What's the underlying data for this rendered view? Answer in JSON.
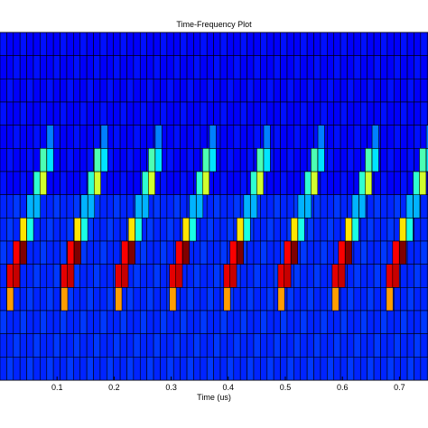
{
  "chart_data": {
    "type": "heatmap",
    "title": "Time-Frequency Plot",
    "xlabel": "Time (us)",
    "ylabel": "",
    "x_ticks": [
      "0.1",
      "0.2",
      "0.3",
      "0.4",
      "0.5",
      "0.6",
      "0.7"
    ],
    "x_tick_values": [
      0.1,
      0.2,
      0.3,
      0.4,
      0.5,
      0.6,
      0.7
    ],
    "xlim": [
      0.0,
      0.75
    ],
    "colormap": "jet",
    "value_range": [
      0,
      1
    ],
    "grid": false,
    "time_bin_width_us": 0.0117,
    "frequency_bins": 15,
    "bin_row_from_top_note": "",
    "chirp_periods_us": [
      0.0,
      0.095,
      0.19,
      0.285,
      0.38,
      0.475,
      0.57,
      0.665
    ],
    "chirp_pattern": [
      {
        "time_offset_us": 0.012,
        "bin": 3,
        "value": 0.72
      },
      {
        "time_offset_us": 0.012,
        "bin": 4,
        "value": 0.9
      },
      {
        "time_offset_us": 0.023,
        "bin": 4,
        "value": 0.93
      },
      {
        "time_offset_us": 0.023,
        "bin": 5,
        "value": 0.88
      },
      {
        "time_offset_us": 0.035,
        "bin": 5,
        "value": 1.0
      },
      {
        "time_offset_us": 0.035,
        "bin": 6,
        "value": 0.65
      },
      {
        "time_offset_us": 0.047,
        "bin": 6,
        "value": 0.4
      },
      {
        "time_offset_us": 0.047,
        "bin": 7,
        "value": 0.3
      },
      {
        "time_offset_us": 0.059,
        "bin": 7,
        "value": 0.3
      },
      {
        "time_offset_us": 0.059,
        "bin": 8,
        "value": 0.42
      },
      {
        "time_offset_us": 0.07,
        "bin": 8,
        "value": 0.58
      },
      {
        "time_offset_us": 0.07,
        "bin": 9,
        "value": 0.45
      },
      {
        "time_offset_us": 0.082,
        "bin": 9,
        "value": 0.35
      },
      {
        "time_offset_us": 0.082,
        "bin": 10,
        "value": 0.25
      }
    ],
    "background_value": 0.12
  }
}
